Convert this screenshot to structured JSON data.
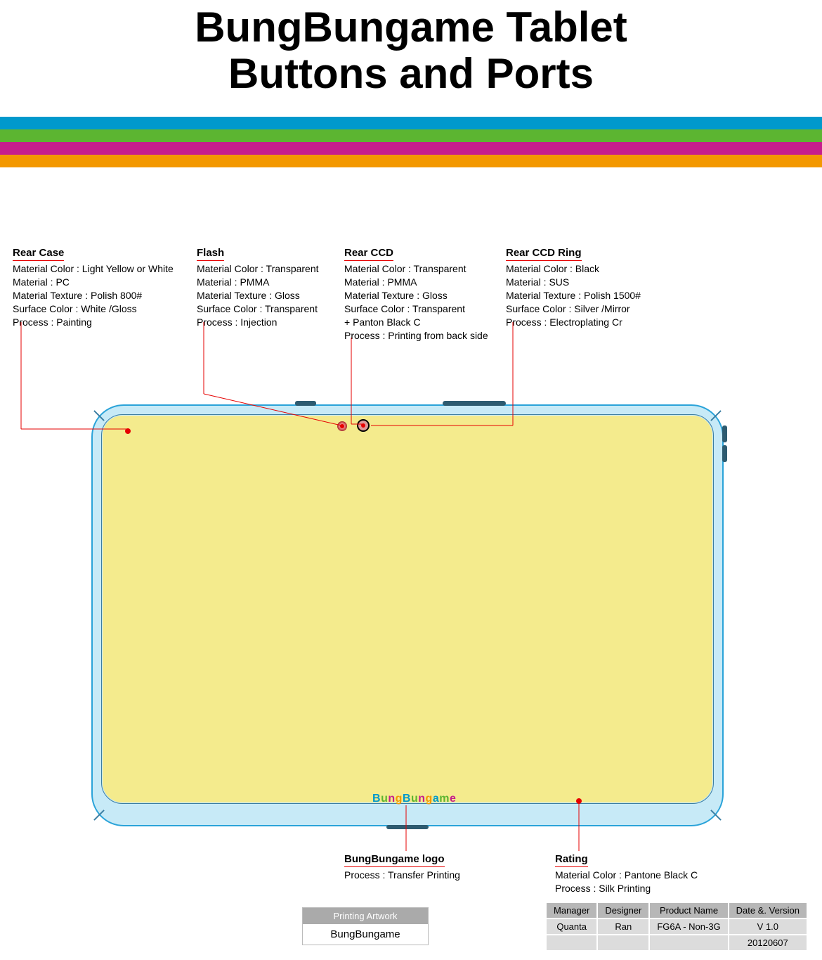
{
  "title_line1": "BungBungame Tablet",
  "title_line2": "Buttons and Ports",
  "stripes": [
    "#0099cc",
    "#5cb531",
    "#c61e8c",
    "#f39800"
  ],
  "callouts": {
    "rear_case": {
      "title": "Rear Case",
      "lines": [
        "Material Color : Light Yellow or White",
        "Material : PC",
        "Material Texture : Polish 800#",
        "Surface Color : White /Gloss",
        "Process : Painting"
      ]
    },
    "flash": {
      "title": "Flash",
      "lines": [
        "Material Color : Transparent",
        "Material : PMMA",
        "Material Texture : Gloss",
        "Surface Color : Transparent",
        "Process :  Injection"
      ]
    },
    "rear_ccd": {
      "title": "Rear CCD",
      "lines": [
        "Material Color : Transparent",
        "Material : PMMA",
        "Material Texture : Gloss",
        "Surface Color : Transparent",
        "                      + Panton Black C",
        "Process : Printing from back side"
      ]
    },
    "rear_ccd_ring": {
      "title": "Rear CCD Ring",
      "lines": [
        "Material Color : Black",
        "Material : SUS",
        "Material Texture : Polish 1500#",
        "Surface Color : Silver /Mirror",
        "Process : Electroplating Cr"
      ]
    },
    "logo": {
      "title": "BungBungame logo",
      "lines": [
        "Process : Transfer Printing"
      ]
    },
    "rating": {
      "title": "Rating",
      "lines": [
        "Material Color : Pantone Black C",
        "Process : Silk Printing"
      ]
    }
  },
  "printing_artwork": {
    "header": "Printing Artwork",
    "body": "BungBungame"
  },
  "info_table": {
    "headers": [
      "Manager",
      "Designer",
      "Product Name",
      "Date &. Version"
    ],
    "rows": [
      [
        "Quanta",
        "Ran",
        "FG6A - Non-3G",
        "V 1.0"
      ],
      [
        "",
        "",
        "",
        "20120607"
      ]
    ]
  },
  "logo_text": "BungBungame",
  "colors": {
    "leader": "#e60000",
    "tablet_border": "#2aa3d9",
    "tablet_fill": "#f4eb8d",
    "tablet_rim": "#c7eaf7"
  }
}
